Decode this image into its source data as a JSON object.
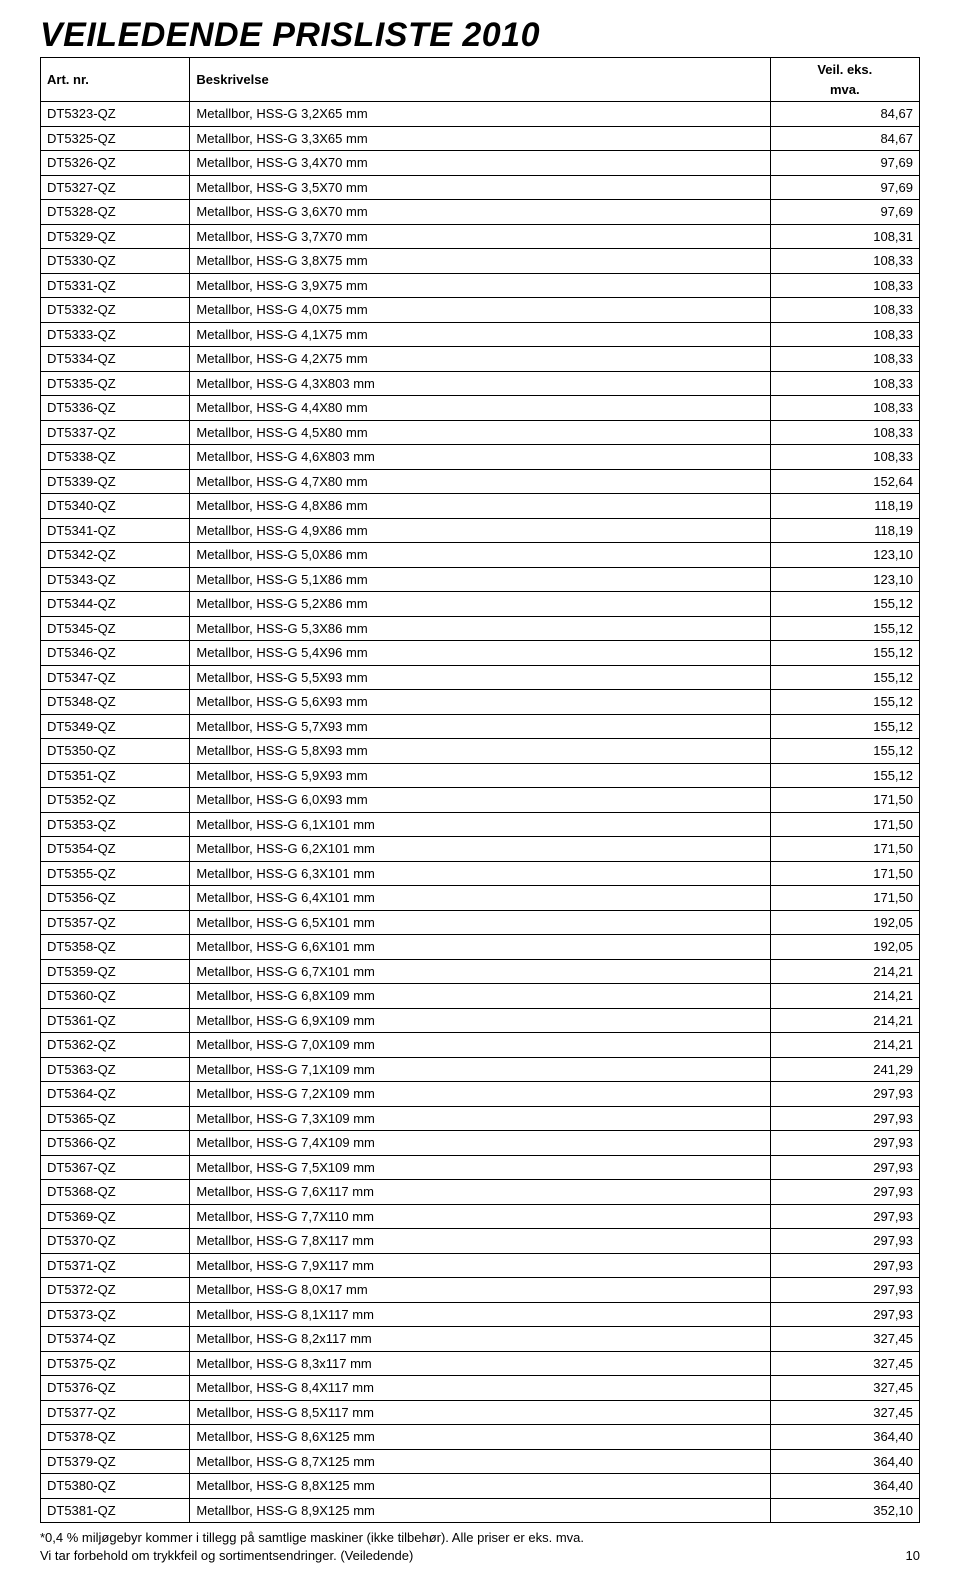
{
  "title": "VEILEDENDE PRISLISTE 2010",
  "headers": {
    "art": "Art. nr.",
    "desc": "Beskrivelse",
    "price_top": "Veil. eks.",
    "price_bot": "mva."
  },
  "rows": [
    [
      "DT5323-QZ",
      "Metallbor, HSS-G  3,2X65 mm",
      "84,67"
    ],
    [
      "DT5325-QZ",
      "Metallbor, HSS-G  3,3X65 mm",
      "84,67"
    ],
    [
      "DT5326-QZ",
      "Metallbor, HSS-G  3,4X70 mm",
      "97,69"
    ],
    [
      "DT5327-QZ",
      "Metallbor, HSS-G  3,5X70 mm",
      "97,69"
    ],
    [
      "DT5328-QZ",
      "Metallbor, HSS-G  3,6X70 mm",
      "97,69"
    ],
    [
      "DT5329-QZ",
      "Metallbor, HSS-G  3,7X70 mm",
      "108,31"
    ],
    [
      "DT5330-QZ",
      "Metallbor, HSS-G  3,8X75 mm",
      "108,33"
    ],
    [
      "DT5331-QZ",
      "Metallbor, HSS-G  3,9X75 mm",
      "108,33"
    ],
    [
      "DT5332-QZ",
      "Metallbor, HSS-G  4,0X75 mm",
      "108,33"
    ],
    [
      "DT5333-QZ",
      "Metallbor, HSS-G  4,1X75 mm",
      "108,33"
    ],
    [
      "DT5334-QZ",
      "Metallbor, HSS-G  4,2X75 mm",
      "108,33"
    ],
    [
      "DT5335-QZ",
      "Metallbor, HSS-G  4,3X803 mm",
      "108,33"
    ],
    [
      "DT5336-QZ",
      "Metallbor, HSS-G  4,4X80 mm",
      "108,33"
    ],
    [
      "DT5337-QZ",
      "Metallbor, HSS-G  4,5X80 mm",
      "108,33"
    ],
    [
      "DT5338-QZ",
      "Metallbor, HSS-G  4,6X803 mm",
      "108,33"
    ],
    [
      "DT5339-QZ",
      "Metallbor, HSS-G  4,7X80 mm",
      "152,64"
    ],
    [
      "DT5340-QZ",
      "Metallbor, HSS-G  4,8X86 mm",
      "118,19"
    ],
    [
      "DT5341-QZ",
      "Metallbor, HSS-G  4,9X86 mm",
      "118,19"
    ],
    [
      "DT5342-QZ",
      "Metallbor, HSS-G  5,0X86 mm",
      "123,10"
    ],
    [
      "DT5343-QZ",
      "Metallbor, HSS-G  5,1X86 mm",
      "123,10"
    ],
    [
      "DT5344-QZ",
      "Metallbor, HSS-G  5,2X86 mm",
      "155,12"
    ],
    [
      "DT5345-QZ",
      "Metallbor, HSS-G  5,3X86 mm",
      "155,12"
    ],
    [
      "DT5346-QZ",
      "Metallbor, HSS-G  5,4X96 mm",
      "155,12"
    ],
    [
      "DT5347-QZ",
      "Metallbor, HSS-G  5,5X93 mm",
      "155,12"
    ],
    [
      "DT5348-QZ",
      "Metallbor, HSS-G  5,6X93 mm",
      "155,12"
    ],
    [
      "DT5349-QZ",
      "Metallbor, HSS-G  5,7X93 mm",
      "155,12"
    ],
    [
      "DT5350-QZ",
      "Metallbor, HSS-G  5,8X93 mm",
      "155,12"
    ],
    [
      "DT5351-QZ",
      "Metallbor, HSS-G  5,9X93 mm",
      "155,12"
    ],
    [
      "DT5352-QZ",
      "Metallbor, HSS-G  6,0X93 mm",
      "171,50"
    ],
    [
      "DT5353-QZ",
      "Metallbor, HSS-G  6,1X101 mm",
      "171,50"
    ],
    [
      "DT5354-QZ",
      "Metallbor, HSS-G  6,2X101 mm",
      "171,50"
    ],
    [
      "DT5355-QZ",
      "Metallbor, HSS-G  6,3X101 mm",
      "171,50"
    ],
    [
      "DT5356-QZ",
      "Metallbor, HSS-G  6,4X101 mm",
      "171,50"
    ],
    [
      "DT5357-QZ",
      "Metallbor, HSS-G  6,5X101 mm",
      "192,05"
    ],
    [
      "DT5358-QZ",
      "Metallbor, HSS-G  6,6X101 mm",
      "192,05"
    ],
    [
      "DT5359-QZ",
      "Metallbor, HSS-G  6,7X101 mm",
      "214,21"
    ],
    [
      "DT5360-QZ",
      "Metallbor, HSS-G  6,8X109 mm",
      "214,21"
    ],
    [
      "DT5361-QZ",
      "Metallbor, HSS-G  6,9X109 mm",
      "214,21"
    ],
    [
      "DT5362-QZ",
      "Metallbor, HSS-G  7,0X109 mm",
      "214,21"
    ],
    [
      "DT5363-QZ",
      "Metallbor, HSS-G  7,1X109 mm",
      "241,29"
    ],
    [
      "DT5364-QZ",
      "Metallbor, HSS-G  7,2X109 mm",
      "297,93"
    ],
    [
      "DT5365-QZ",
      "Metallbor, HSS-G  7,3X109 mm",
      "297,93"
    ],
    [
      "DT5366-QZ",
      "Metallbor, HSS-G  7,4X109 mm",
      "297,93"
    ],
    [
      "DT5367-QZ",
      "Metallbor, HSS-G  7,5X109 mm",
      "297,93"
    ],
    [
      "DT5368-QZ",
      "Metallbor, HSS-G  7,6X117 mm",
      "297,93"
    ],
    [
      "DT5369-QZ",
      "Metallbor, HSS-G  7,7X110 mm",
      "297,93"
    ],
    [
      "DT5370-QZ",
      "Metallbor, HSS-G  7,8X117 mm",
      "297,93"
    ],
    [
      "DT5371-QZ",
      "Metallbor, HSS-G  7,9X117 mm",
      "297,93"
    ],
    [
      "DT5372-QZ",
      "Metallbor, HSS-G  8,0X17 mm",
      "297,93"
    ],
    [
      "DT5373-QZ",
      "Metallbor, HSS-G  8,1X117 mm",
      "297,93"
    ],
    [
      "DT5374-QZ",
      "Metallbor, HSS-G  8,2x117 mm",
      "327,45"
    ],
    [
      "DT5375-QZ",
      "Metallbor, HSS-G  8,3x117 mm",
      "327,45"
    ],
    [
      "DT5376-QZ",
      "Metallbor, HSS-G  8,4X117 mm",
      "327,45"
    ],
    [
      "DT5377-QZ",
      "Metallbor, HSS-G 8,5X117 mm",
      "327,45"
    ],
    [
      "DT5378-QZ",
      "Metallbor, HSS-G 8,6X125 mm",
      "364,40"
    ],
    [
      "DT5379-QZ",
      "Metallbor, HSS-G 8,7X125 mm",
      "364,40"
    ],
    [
      "DT5380-QZ",
      "Metallbor, HSS-G 8,8X125 mm",
      "364,40"
    ],
    [
      "DT5381-QZ",
      "Metallbor, HSS-G 8,9X125 mm",
      "352,10"
    ]
  ],
  "footer": {
    "line1": "*0,4 % miljøgebyr kommer i tillegg på samtlige maskiner (ikke tilbehør). Alle priser er eks. mva.",
    "line2": "Vi tar forbehold om trykkfeil og sortimentsendringer. (Veiledende)",
    "page": "10"
  }
}
